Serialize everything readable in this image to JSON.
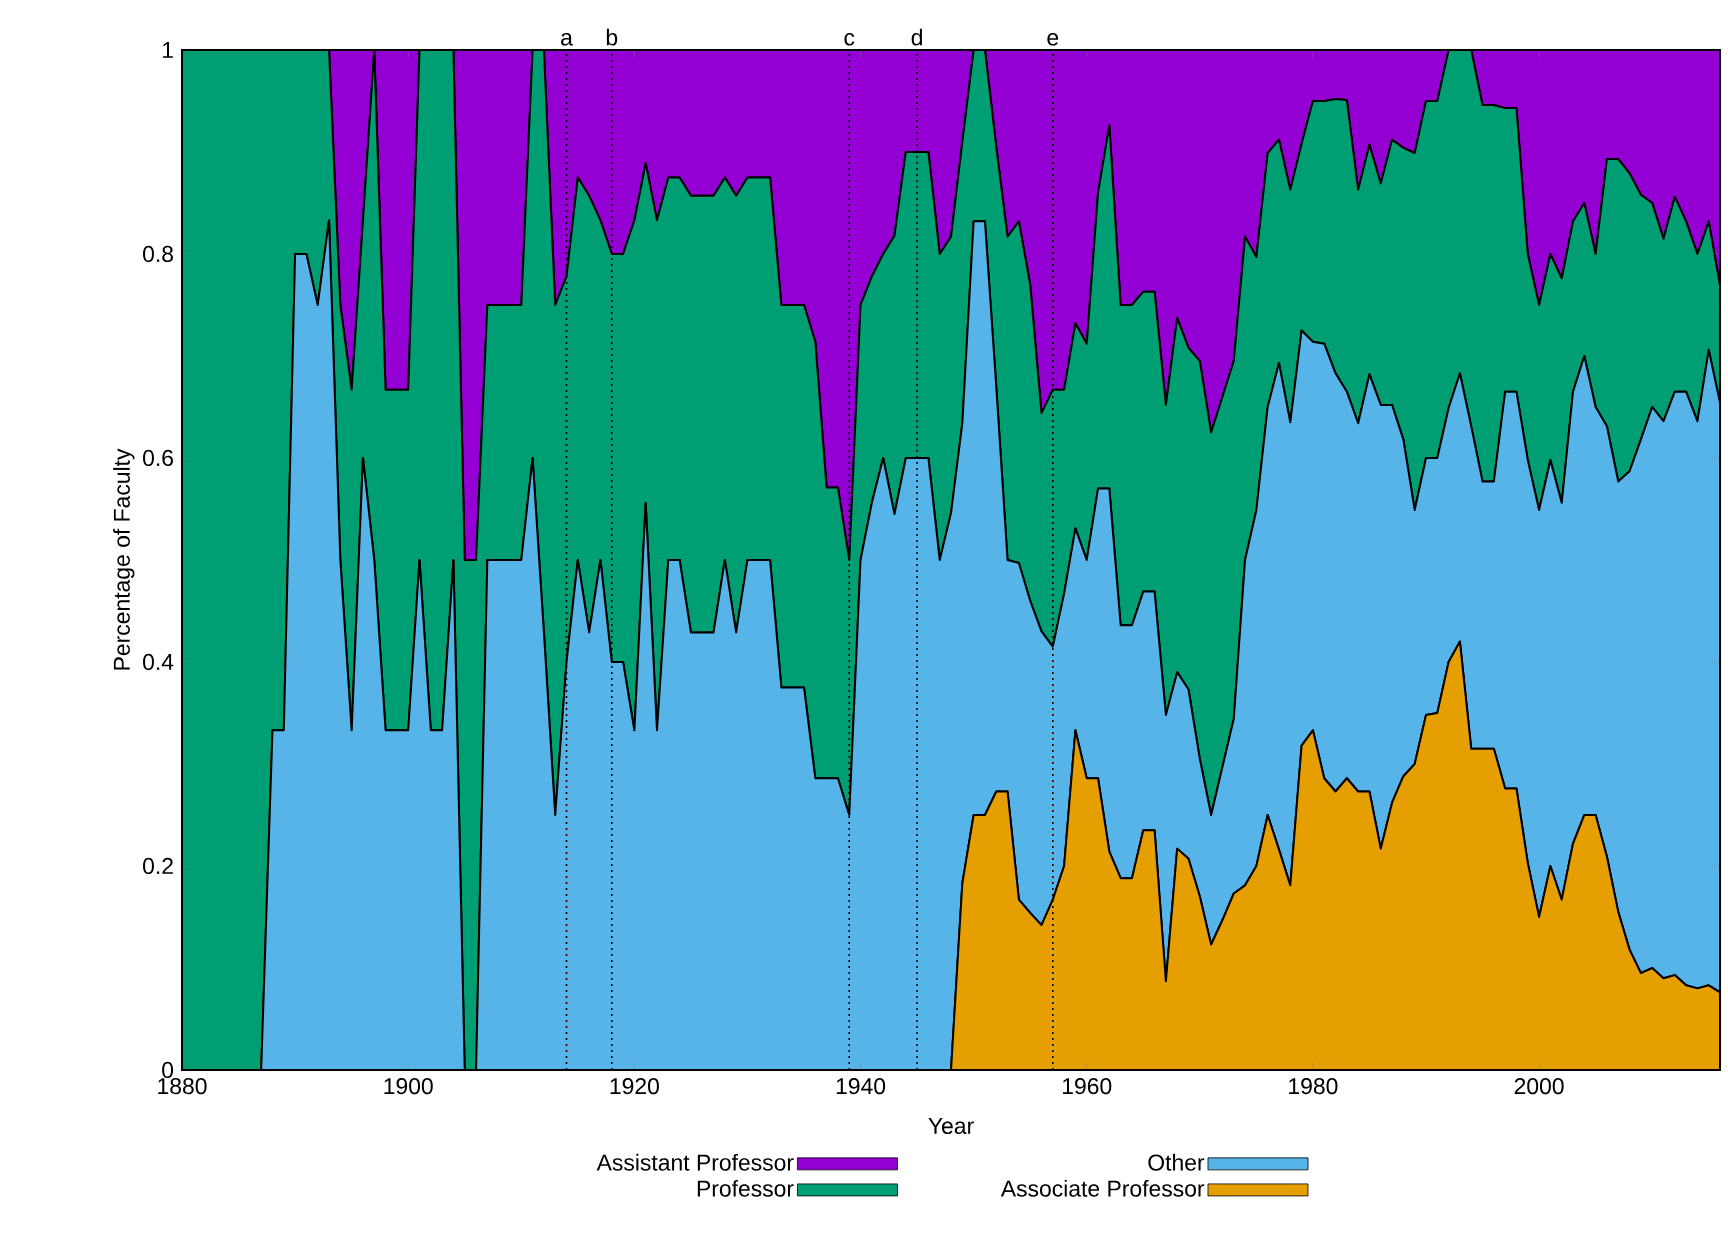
{
  "chart_data": {
    "type": "area",
    "stacked": true,
    "xlabel": "Year",
    "ylabel": "Percentage of Faculty",
    "x": [
      1880,
      1881,
      1882,
      1883,
      1884,
      1885,
      1886,
      1887,
      1888,
      1889,
      1890,
      1891,
      1892,
      1893,
      1894,
      1895,
      1896,
      1897,
      1898,
      1899,
      1900,
      1901,
      1902,
      1903,
      1904,
      1905,
      1906,
      1907,
      1908,
      1909,
      1910,
      1911,
      1912,
      1913,
      1914,
      1915,
      1916,
      1917,
      1918,
      1919,
      1920,
      1921,
      1922,
      1923,
      1924,
      1925,
      1926,
      1927,
      1928,
      1929,
      1930,
      1931,
      1932,
      1933,
      1934,
      1935,
      1936,
      1937,
      1938,
      1939,
      1940,
      1941,
      1942,
      1943,
      1944,
      1945,
      1946,
      1947,
      1948,
      1949,
      1950,
      1951,
      1952,
      1953,
      1954,
      1955,
      1956,
      1957,
      1958,
      1959,
      1960,
      1961,
      1962,
      1963,
      1964,
      1965,
      1966,
      1967,
      1968,
      1969,
      1970,
      1971,
      1972,
      1973,
      1974,
      1975,
      1976,
      1977,
      1978,
      1979,
      1980,
      1981,
      1982,
      1983,
      1984,
      1985,
      1986,
      1987,
      1988,
      1989,
      1990,
      1991,
      1992,
      1993,
      1994,
      1995,
      1996,
      1997,
      1998,
      1999,
      2000,
      2001,
      2002,
      2003,
      2004,
      2005,
      2006,
      2007,
      2008,
      2009,
      2010,
      2011,
      2012,
      2013,
      2014,
      2015,
      2016
    ],
    "series": [
      {
        "name": "Associate Professor",
        "color": "#e69f00",
        "values": [
          0,
          0,
          0,
          0,
          0,
          0,
          0,
          0,
          0,
          0,
          0,
          0,
          0,
          0,
          0,
          0,
          0,
          0,
          0,
          0,
          0,
          0,
          0,
          0,
          0,
          0,
          0,
          0,
          0,
          0,
          0,
          0,
          0,
          0,
          0,
          0,
          0,
          0,
          0,
          0,
          0,
          0,
          0,
          0,
          0,
          0,
          0,
          0,
          0,
          0,
          0,
          0,
          0,
          0,
          0,
          0,
          0,
          0,
          0,
          0,
          0,
          0,
          0,
          0,
          0,
          0,
          0,
          0,
          0,
          0.183,
          0.25,
          0.25,
          0.273,
          0.273,
          0.167,
          0.154,
          0.142,
          0.167,
          0.2,
          0.333,
          0.286,
          0.286,
          0.214,
          0.188,
          0.188,
          0.235,
          0.235,
          0.087,
          0.217,
          0.207,
          0.17,
          0.123,
          0.147,
          0.173,
          0.181,
          0.2,
          0.25,
          0.216,
          0.181,
          0.318,
          0.333,
          0.286,
          0.273,
          0.286,
          0.273,
          0.273,
          0.217,
          0.262,
          0.288,
          0.3,
          0.348,
          0.35,
          0.4,
          0.42,
          0.315,
          0.315,
          0.315,
          0.276,
          0.276,
          0.203,
          0.15,
          0.2,
          0.167,
          0.222,
          0.25,
          0.25,
          0.209,
          0.155,
          0.118,
          0.095,
          0.1,
          0.09,
          0.093,
          0.083,
          0.08,
          0.083,
          0.076
        ]
      },
      {
        "name": "Other",
        "color": "#56b4e9",
        "values": [
          0,
          0,
          0,
          0,
          0,
          0,
          0,
          0,
          0.333,
          0.333,
          0.8,
          0.8,
          0.75,
          0.833,
          0.5,
          0.333,
          0.6,
          0.5,
          0.333,
          0.333,
          0.333,
          0.5,
          0.333,
          0.333,
          0.5,
          0,
          0,
          0.5,
          0.5,
          0.5,
          0.5,
          0.6,
          0.429,
          0.25,
          0.4,
          0.5,
          0.429,
          0.5,
          0.4,
          0.4,
          0.333,
          0.556,
          0.333,
          0.5,
          0.5,
          0.429,
          0.429,
          0.429,
          0.5,
          0.429,
          0.5,
          0.5,
          0.5,
          0.375,
          0.375,
          0.375,
          0.286,
          0.286,
          0.286,
          0.25,
          0.5,
          0.556,
          0.6,
          0.545,
          0.6,
          0.6,
          0.6,
          0.5,
          0.546,
          0.451,
          0.582,
          0.582,
          0.397,
          0.227,
          0.33,
          0.306,
          0.288,
          0.248,
          0.267,
          0.198,
          0.214,
          0.284,
          0.356,
          0.248,
          0.248,
          0.234,
          0.234,
          0.261,
          0.173,
          0.166,
          0.135,
          0.127,
          0.15,
          0.171,
          0.319,
          0.349,
          0.4,
          0.477,
          0.454,
          0.407,
          0.381,
          0.426,
          0.41,
          0.379,
          0.361,
          0.409,
          0.435,
          0.39,
          0.33,
          0.249,
          0.252,
          0.25,
          0.249,
          0.263,
          0.316,
          0.262,
          0.262,
          0.389,
          0.389,
          0.395,
          0.399,
          0.398,
          0.389,
          0.443,
          0.45,
          0.4,
          0.422,
          0.422,
          0.469,
          0.523,
          0.55,
          0.546,
          0.572,
          0.582,
          0.556,
          0.623,
          0.578
        ]
      },
      {
        "name": "Professor",
        "color": "#009e73",
        "values": [
          1,
          1,
          1,
          1,
          1,
          1,
          1,
          1,
          0.667,
          0.667,
          0.2,
          0.2,
          0.25,
          0.167,
          0.25,
          0.334,
          0.233,
          0.5,
          0.334,
          0.334,
          0.334,
          0.5,
          0.667,
          0.667,
          0.5,
          0.5,
          0.5,
          0.25,
          0.25,
          0.25,
          0.25,
          0.4,
          0.571,
          0.5,
          0.378,
          0.375,
          0.428,
          0.333,
          0.4,
          0.4,
          0.5,
          0.333,
          0.5,
          0.375,
          0.375,
          0.428,
          0.428,
          0.428,
          0.375,
          0.428,
          0.375,
          0.375,
          0.375,
          0.375,
          0.375,
          0.375,
          0.428,
          0.285,
          0.285,
          0.25,
          0.25,
          0.222,
          0.2,
          0.273,
          0.3,
          0.3,
          0.3,
          0.3,
          0.271,
          0.276,
          0.168,
          0.168,
          0.235,
          0.317,
          0.335,
          0.31,
          0.214,
          0.252,
          0.2,
          0.201,
          0.212,
          0.29,
          0.356,
          0.314,
          0.314,
          0.294,
          0.294,
          0.304,
          0.347,
          0.335,
          0.39,
          0.375,
          0.363,
          0.351,
          0.317,
          0.248,
          0.249,
          0.219,
          0.228,
          0.183,
          0.236,
          0.238,
          0.269,
          0.286,
          0.229,
          0.225,
          0.217,
          0.26,
          0.286,
          0.35,
          0.35,
          0.35,
          0.351,
          0.317,
          0.369,
          0.369,
          0.369,
          0.278,
          0.278,
          0.202,
          0.201,
          0.202,
          0.22,
          0.167,
          0.15,
          0.15,
          0.262,
          0.316,
          0.292,
          0.24,
          0.2,
          0.179,
          0.191,
          0.167,
          0.164,
          0.126,
          0.115
        ]
      },
      {
        "name": "Assistant Professor",
        "color": "#9400d3",
        "values": [
          0,
          0,
          0,
          0,
          0,
          0,
          0,
          0,
          0,
          0,
          0,
          0,
          0,
          0,
          0.25,
          0.333,
          0.167,
          0,
          0.333,
          0.333,
          0.333,
          0,
          0,
          0,
          0,
          0.5,
          0.5,
          0.25,
          0.25,
          0.25,
          0.25,
          0,
          0,
          0.25,
          0.222,
          0.125,
          0.143,
          0.167,
          0.2,
          0.2,
          0.167,
          0.111,
          0.167,
          0.125,
          0.125,
          0.143,
          0.143,
          0.143,
          0.125,
          0.143,
          0.125,
          0.125,
          0.125,
          0.25,
          0.25,
          0.25,
          0.286,
          0.429,
          0.429,
          0.5,
          0.25,
          0.222,
          0.2,
          0.182,
          0.1,
          0.1,
          0.1,
          0.2,
          0.183,
          0.09,
          0,
          0,
          0.095,
          0.183,
          0.168,
          0.23,
          0.356,
          0.333,
          0.333,
          0.268,
          0.288,
          0.14,
          0.074,
          0.25,
          0.25,
          0.237,
          0.237,
          0.348,
          0.263,
          0.292,
          0.305,
          0.375,
          0.34,
          0.305,
          0.183,
          0.203,
          0.101,
          0.088,
          0.137,
          0.092,
          0.05,
          0.05,
          0.048,
          0.049,
          0.137,
          0.093,
          0.131,
          0.088,
          0.096,
          0.101,
          0.05,
          0.05,
          0,
          0,
          0,
          0.054,
          0.054,
          0.057,
          0.057,
          0.2,
          0.25,
          0.2,
          0.224,
          0.168,
          0.15,
          0.2,
          0.107,
          0.107,
          0.121,
          0.142,
          0.15,
          0.185,
          0.144,
          0.168,
          0.2,
          0.168,
          0.231
        ]
      }
    ],
    "xlim": [
      1880,
      2016
    ],
    "ylim": [
      0,
      1
    ],
    "xticks": [
      1880,
      1900,
      1920,
      1940,
      1960,
      1980,
      2000
    ],
    "yticks": [
      0,
      0.2,
      0.4,
      0.6,
      0.8,
      1
    ],
    "ref_lines": [
      {
        "axis": "x",
        "value": 1914,
        "label": "a",
        "line_style": "dotted"
      },
      {
        "axis": "x",
        "value": 1918,
        "label": "b",
        "line_style": "dotted"
      },
      {
        "axis": "x",
        "value": 1939,
        "label": "c",
        "line_style": "dotted"
      },
      {
        "axis": "x",
        "value": 1945,
        "label": "d",
        "line_style": "dotted"
      },
      {
        "axis": "x",
        "value": 1957,
        "label": "e",
        "line_style": "dotted"
      }
    ],
    "legend": "bottom"
  }
}
